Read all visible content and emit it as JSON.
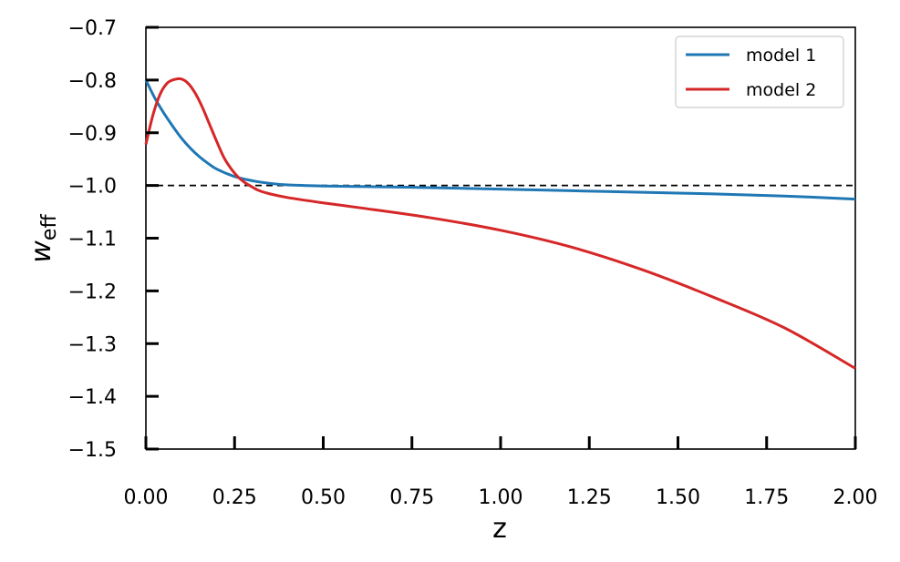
{
  "chart_data": {
    "type": "line",
    "xlabel": "z",
    "ylabel_main": "w",
    "ylabel_sub": "eff",
    "xlim": [
      0,
      2
    ],
    "ylim": [
      -1.5,
      -0.7
    ],
    "grid": false,
    "legend_position": "top-right",
    "x_ticks": [
      0,
      0.25,
      0.5,
      0.75,
      1.0,
      1.25,
      1.5,
      1.75,
      2.0
    ],
    "x_tick_labels": [
      "0.00",
      "0.25",
      "0.50",
      "0.75",
      "1.00",
      "1.25",
      "1.50",
      "1.75",
      "2.00"
    ],
    "y_ticks": [
      -0.7,
      -0.8,
      -0.9,
      -1.0,
      -1.1,
      -1.2,
      -1.3,
      -1.4,
      -1.5
    ],
    "y_tick_labels": [
      "−0.7",
      "−0.8",
      "−0.9",
      "−1.0",
      "−1.1",
      "−1.2",
      "−1.3",
      "−1.4",
      "−1.5"
    ],
    "reference_line": {
      "y": -1.0,
      "style": "dashed",
      "color": "#000000"
    },
    "series": [
      {
        "name": "model 1",
        "color": "#1f77b4",
        "x": [
          0,
          0.025,
          0.05,
          0.075,
          0.1,
          0.125,
          0.15,
          0.175,
          0.2,
          0.25,
          0.3,
          0.35,
          0.4,
          0.5,
          0.6,
          0.8,
          1.0,
          1.2,
          1.4,
          1.6,
          1.8,
          2.0
        ],
        "y": [
          -0.8,
          -0.834,
          -0.862,
          -0.887,
          -0.91,
          -0.929,
          -0.945,
          -0.958,
          -0.969,
          -0.983,
          -0.991,
          -0.996,
          -0.999,
          -1.001,
          -1.002,
          -1.004,
          -1.007,
          -1.01,
          -1.013,
          -1.016,
          -1.02,
          -1.026
        ]
      },
      {
        "name": "model 2",
        "color": "#d62728",
        "x": [
          0,
          0.02,
          0.04,
          0.06,
          0.08,
          0.1,
          0.12,
          0.14,
          0.16,
          0.18,
          0.2,
          0.22,
          0.24,
          0.26,
          0.28,
          0.3,
          0.32,
          0.35,
          0.4,
          0.5,
          0.6,
          0.8,
          1.0,
          1.2,
          1.4,
          1.6,
          1.8,
          2.0
        ],
        "y": [
          -0.922,
          -0.866,
          -0.827,
          -0.806,
          -0.799,
          -0.798,
          -0.807,
          -0.826,
          -0.853,
          -0.885,
          -0.917,
          -0.947,
          -0.968,
          -0.984,
          -0.995,
          -1.003,
          -1.01,
          -1.016,
          -1.023,
          -1.033,
          -1.042,
          -1.061,
          -1.085,
          -1.117,
          -1.16,
          -1.212,
          -1.27,
          -1.347
        ]
      }
    ]
  }
}
